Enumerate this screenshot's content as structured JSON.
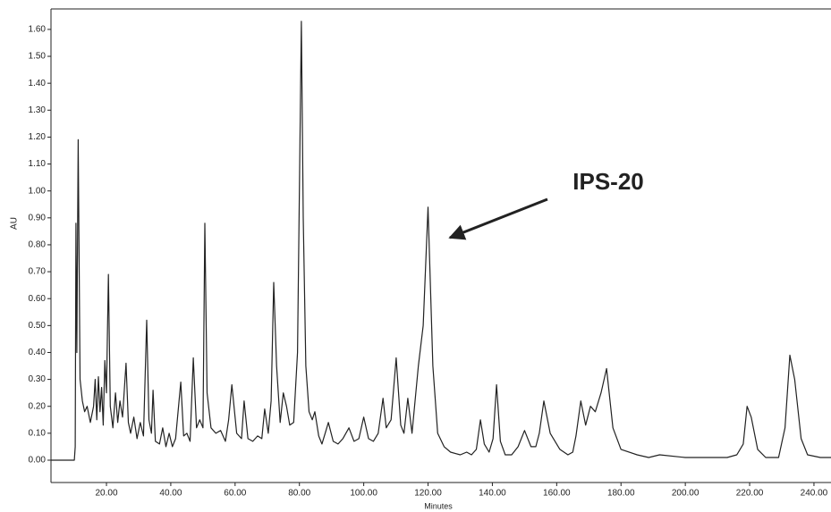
{
  "chart_data": {
    "type": "line",
    "x_label": "Minutes",
    "y_label": "AU",
    "annotation": "IPS-20",
    "xlim": [
      2.75,
      245.3
    ],
    "ylim": [
      -0.083,
      1.676
    ],
    "xticks": [
      {
        "value": 20,
        "label": "20.00"
      },
      {
        "value": 40,
        "label": "40.00"
      },
      {
        "value": 60,
        "label": "60.00"
      },
      {
        "value": 80,
        "label": "80.00"
      },
      {
        "value": 100,
        "label": "100.00"
      },
      {
        "value": 120,
        "label": "120.00"
      },
      {
        "value": 140,
        "label": "140.00"
      },
      {
        "value": 160,
        "label": "160.00"
      },
      {
        "value": 180,
        "label": "180.00"
      },
      {
        "value": 200,
        "label": "200.00"
      },
      {
        "value": 220,
        "label": "220.00"
      },
      {
        "value": 240,
        "label": "240.00"
      }
    ],
    "yticks": [
      {
        "value": 0,
        "label": "0.00"
      },
      {
        "value": 0.1,
        "label": "0.10"
      },
      {
        "value": 0.2,
        "label": "0.20"
      },
      {
        "value": 0.3,
        "label": "0.30"
      },
      {
        "value": 0.4,
        "label": "0.40"
      },
      {
        "value": 0.5,
        "label": "0.50"
      },
      {
        "value": 0.6,
        "label": "0.60"
      },
      {
        "value": 0.7,
        "label": "0.70"
      },
      {
        "value": 0.8,
        "label": "0.80"
      },
      {
        "value": 0.9,
        "label": "0.90"
      },
      {
        "value": 1.0,
        "label": "1.00"
      },
      {
        "value": 1.1,
        "label": "1.10"
      },
      {
        "value": 1.2,
        "label": "1.20"
      },
      {
        "value": 1.3,
        "label": "1.30"
      },
      {
        "value": 1.4,
        "label": "1.40"
      },
      {
        "value": 1.5,
        "label": "1.50"
      },
      {
        "value": 1.6,
        "label": "1.60"
      }
    ],
    "x": [
      2.75,
      10,
      10.3,
      10.5,
      10.8,
      11.2,
      11.8,
      12.5,
      13.2,
      14,
      15,
      16,
      16.5,
      17,
      17.5,
      18,
      18.5,
      19,
      19.5,
      20,
      20.6,
      21.2,
      22,
      22.8,
      23.5,
      24.2,
      25,
      26.1,
      26.8,
      27.5,
      28.5,
      29.5,
      30.5,
      31.5,
      32.5,
      33.2,
      34,
      34.5,
      35.2,
      36.5,
      37.5,
      38.5,
      39.5,
      40.5,
      41.5,
      43.1,
      44,
      45,
      46,
      47,
      48,
      49,
      50,
      50.6,
      51.3,
      52.5,
      54,
      55.5,
      57,
      58,
      59,
      60.5,
      62,
      62.8,
      64,
      65.5,
      67,
      68.3,
      69.2,
      70.3,
      71.2,
      72,
      72.9,
      74,
      75,
      76,
      77,
      78.2,
      79.4,
      80,
      80.6,
      81.2,
      82,
      83,
      84,
      84.8,
      86,
      87,
      88,
      89,
      90.5,
      92,
      93.5,
      95.4,
      97,
      98.5,
      100,
      101.5,
      103,
      104.5,
      106,
      107,
      108.5,
      110.1,
      111.5,
      112.5,
      113.7,
      115,
      117,
      118.5,
      120,
      121.5,
      123,
      125,
      127,
      130,
      132,
      133.5,
      135,
      136.3,
      137.5,
      139,
      140.2,
      141.3,
      142.5,
      144,
      146,
      148,
      150,
      152,
      153.5,
      154.6,
      156,
      158,
      161,
      163.5,
      165,
      166,
      167.5,
      169,
      170.5,
      172,
      173.8,
      175.5,
      177.5,
      180,
      185,
      188.6,
      192,
      200,
      208,
      213,
      216,
      218,
      219.2,
      220.5,
      222.5,
      225,
      229,
      231,
      232.5,
      234,
      236,
      238,
      242,
      245.3
    ],
    "series": [
      {
        "name": "AU",
        "color": "#222222",
        "values": [
          0,
          0,
          0.05,
          0.88,
          0.4,
          1.19,
          0.3,
          0.22,
          0.18,
          0.2,
          0.14,
          0.2,
          0.3,
          0.15,
          0.31,
          0.18,
          0.27,
          0.13,
          0.37,
          0.25,
          0.69,
          0.2,
          0.12,
          0.25,
          0.14,
          0.22,
          0.16,
          0.36,
          0.14,
          0.1,
          0.16,
          0.08,
          0.14,
          0.09,
          0.52,
          0.15,
          0.1,
          0.26,
          0.07,
          0.06,
          0.12,
          0.05,
          0.1,
          0.05,
          0.08,
          0.29,
          0.09,
          0.1,
          0.07,
          0.38,
          0.12,
          0.15,
          0.12,
          0.88,
          0.25,
          0.12,
          0.1,
          0.11,
          0.07,
          0.15,
          0.28,
          0.1,
          0.08,
          0.22,
          0.08,
          0.07,
          0.09,
          0.08,
          0.19,
          0.1,
          0.22,
          0.66,
          0.35,
          0.14,
          0.25,
          0.2,
          0.13,
          0.14,
          0.4,
          1.0,
          1.63,
          0.9,
          0.35,
          0.18,
          0.15,
          0.18,
          0.09,
          0.06,
          0.1,
          0.14,
          0.07,
          0.06,
          0.08,
          0.12,
          0.07,
          0.08,
          0.16,
          0.08,
          0.07,
          0.1,
          0.23,
          0.12,
          0.15,
          0.38,
          0.13,
          0.1,
          0.23,
          0.1,
          0.35,
          0.5,
          0.94,
          0.35,
          0.1,
          0.05,
          0.03,
          0.02,
          0.03,
          0.02,
          0.04,
          0.15,
          0.06,
          0.03,
          0.08,
          0.28,
          0.07,
          0.02,
          0.02,
          0.05,
          0.11,
          0.05,
          0.05,
          0.1,
          0.22,
          0.1,
          0.04,
          0.02,
          0.03,
          0.09,
          0.22,
          0.13,
          0.2,
          0.18,
          0.25,
          0.34,
          0.12,
          0.04,
          0.02,
          0.01,
          0.02,
          0.01,
          0.01,
          0.01,
          0.02,
          0.06,
          0.2,
          0.16,
          0.04,
          0.01,
          0.01,
          0.12,
          0.39,
          0.3,
          0.08,
          0.02,
          0.01,
          0.01
        ]
      }
    ]
  }
}
